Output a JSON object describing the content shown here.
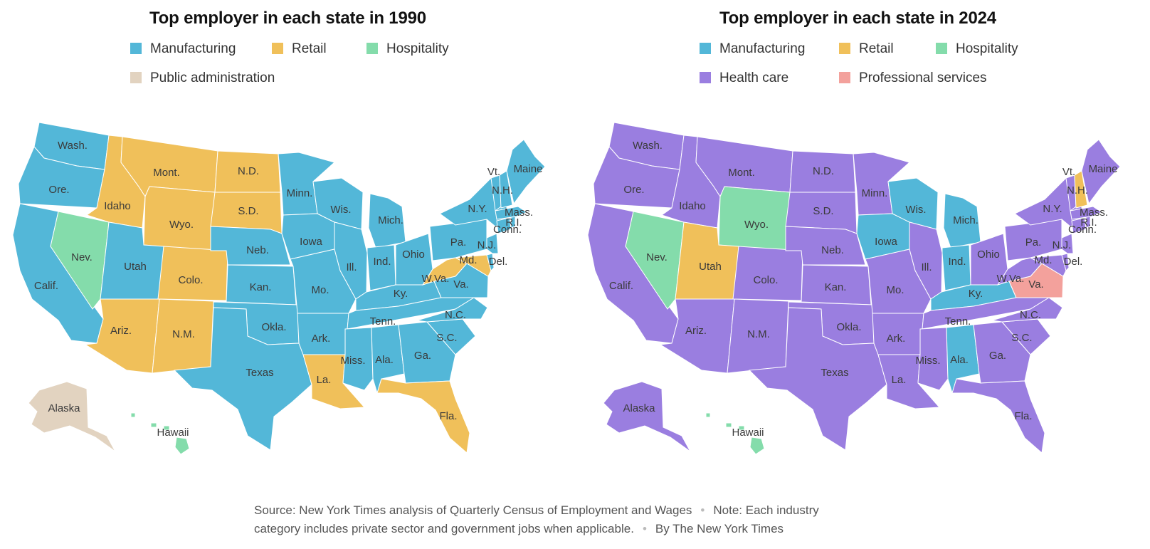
{
  "colors": {
    "manufacturing": "#53b7d8",
    "retail": "#f0c05a",
    "hospitality": "#84dcab",
    "public_administration": "#e2d3c0",
    "health_care": "#9a7ee0",
    "professional_services": "#f3a19c"
  },
  "map1990": {
    "title": "Top employer in each state in 1990",
    "legend": [
      {
        "label": "Manufacturing",
        "color": "#53b7d8"
      },
      {
        "label": "Retail",
        "color": "#f0c05a"
      },
      {
        "label": "Hospitality",
        "color": "#84dcab"
      },
      {
        "label": "Public administration",
        "color": "#e2d3c0"
      }
    ],
    "states": {
      "Wash.": "manufacturing",
      "Ore.": "manufacturing",
      "Calif.": "manufacturing",
      "Nev.": "hospitality",
      "Idaho": "retail",
      "Mont.": "retail",
      "Wyo.": "retail",
      "Utah": "manufacturing",
      "Colo.": "retail",
      "Ariz.": "retail",
      "N.M.": "retail",
      "N.D.": "retail",
      "S.D.": "retail",
      "Neb.": "manufacturing",
      "Kan.": "manufacturing",
      "Okla.": "manufacturing",
      "Texas": "manufacturing",
      "Minn.": "manufacturing",
      "Iowa": "manufacturing",
      "Mo.": "manufacturing",
      "Ark.": "manufacturing",
      "La.": "retail",
      "Wis.": "manufacturing",
      "Ill.": "manufacturing",
      "Mich.": "manufacturing",
      "Ind.": "manufacturing",
      "Ohio": "manufacturing",
      "Ky.": "manufacturing",
      "Tenn.": "manufacturing",
      "Miss.": "manufacturing",
      "Ala.": "manufacturing",
      "Ga.": "manufacturing",
      "Fla.": "retail",
      "S.C.": "manufacturing",
      "N.C.": "manufacturing",
      "Va.": "manufacturing",
      "W.Va.": "retail",
      "Md.": "retail",
      "Del.": "manufacturing",
      "N.J.": "manufacturing",
      "Pa.": "manufacturing",
      "N.Y.": "manufacturing",
      "Conn.": "manufacturing",
      "R.I.": "manufacturing",
      "Mass.": "manufacturing",
      "Vt.": "manufacturing",
      "N.H.": "manufacturing",
      "Maine": "manufacturing",
      "Alaska": "public_administration",
      "Hawaii": "hospitality"
    }
  },
  "map2024": {
    "title": "Top employer in each state in 2024",
    "legend": [
      {
        "label": "Manufacturing",
        "color": "#53b7d8"
      },
      {
        "label": "Retail",
        "color": "#f0c05a"
      },
      {
        "label": "Hospitality",
        "color": "#84dcab"
      },
      {
        "label": "Health care",
        "color": "#9a7ee0"
      },
      {
        "label": "Professional services",
        "color": "#f3a19c"
      }
    ],
    "states": {
      "Wash.": "health_care",
      "Ore.": "health_care",
      "Calif.": "health_care",
      "Nev.": "hospitality",
      "Idaho": "health_care",
      "Mont.": "health_care",
      "Wyo.": "hospitality",
      "Utah": "retail",
      "Colo.": "health_care",
      "Ariz.": "health_care",
      "N.M.": "health_care",
      "N.D.": "health_care",
      "S.D.": "health_care",
      "Neb.": "health_care",
      "Kan.": "health_care",
      "Okla.": "health_care",
      "Texas": "health_care",
      "Minn.": "health_care",
      "Iowa": "manufacturing",
      "Mo.": "health_care",
      "Ark.": "health_care",
      "La.": "health_care",
      "Wis.": "manufacturing",
      "Ill.": "health_care",
      "Mich.": "manufacturing",
      "Ind.": "manufacturing",
      "Ohio": "health_care",
      "Ky.": "manufacturing",
      "Tenn.": "health_care",
      "Miss.": "health_care",
      "Ala.": "manufacturing",
      "Ga.": "health_care",
      "Fla.": "health_care",
      "S.C.": "health_care",
      "N.C.": "health_care",
      "Va.": "professional_services",
      "W.Va.": "health_care",
      "Md.": "health_care",
      "Del.": "health_care",
      "N.J.": "health_care",
      "Pa.": "health_care",
      "N.Y.": "health_care",
      "Conn.": "health_care",
      "R.I.": "health_care",
      "Mass.": "health_care",
      "Vt.": "health_care",
      "N.H.": "retail",
      "Maine": "health_care",
      "Alaska": "health_care",
      "Hawaii": "hospitality"
    }
  },
  "footnote": {
    "source": "Source: New York Times analysis of Quarterly Census of Employment and Wages",
    "note_line1": "Note: Each industry",
    "note_line2": "category includes private sector and government jobs when applicable.",
    "byline": "By The New York Times"
  }
}
